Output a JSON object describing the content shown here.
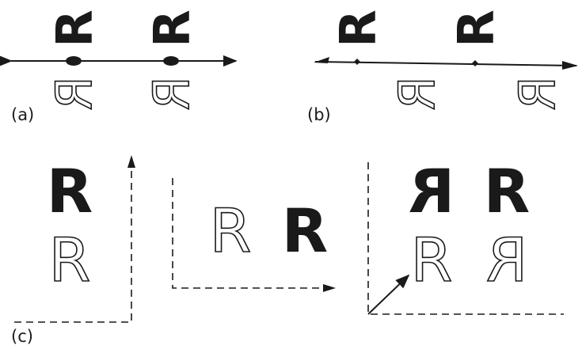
{
  "panels": {
    "a": {
      "label": "(a)"
    },
    "b": {
      "label": "(b)"
    },
    "c": {
      "label": "(c)"
    }
  },
  "glyph": "R"
}
